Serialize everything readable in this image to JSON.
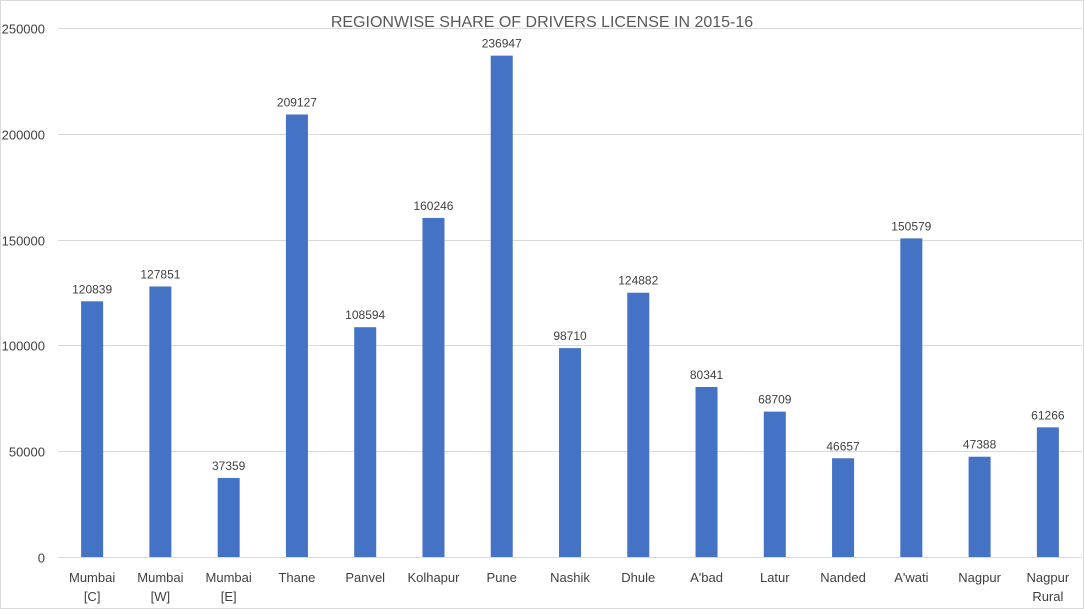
{
  "chart_data": {
    "type": "bar",
    "title": "REGIONWISE SHARE OF DRIVERS LICENSE IN 2015-16",
    "categories": [
      [
        "Mumbai",
        "[C]"
      ],
      [
        "Mumbai",
        "[W]"
      ],
      [
        "Mumbai",
        "[E]"
      ],
      [
        "Thane"
      ],
      [
        "Panvel"
      ],
      [
        "Kolhapur"
      ],
      [
        "Pune"
      ],
      [
        "Nashik"
      ],
      [
        "Dhule"
      ],
      [
        "A'bad"
      ],
      [
        "Latur"
      ],
      [
        "Nanded"
      ],
      [
        "A'wati"
      ],
      [
        "Nagpur"
      ],
      [
        "Nagpur",
        "Rural"
      ]
    ],
    "values": [
      120839,
      127851,
      37359,
      209127,
      108594,
      160246,
      236947,
      98710,
      124882,
      80341,
      68709,
      46657,
      150579,
      47388,
      61266
    ],
    "ylim": [
      0,
      250000
    ],
    "yticks": [
      0,
      50000,
      100000,
      150000,
      200000,
      250000
    ],
    "grid": true,
    "legend": "none",
    "bar_color": "#4472c4",
    "grid_color": "#d9d9d9",
    "text_color": "#404040"
  }
}
